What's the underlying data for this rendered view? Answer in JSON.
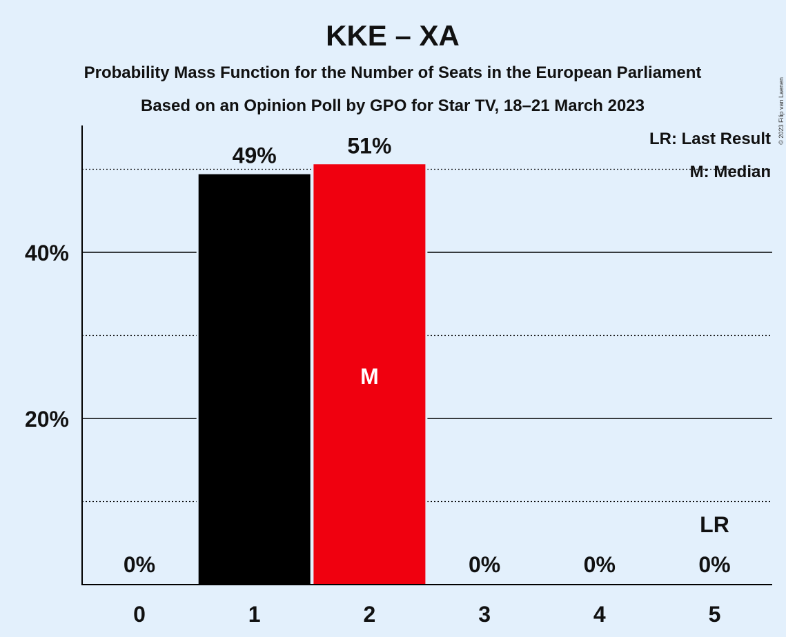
{
  "header": {
    "title": "KKE – XA",
    "subtitle_line1": "Probability Mass Function for the Number of Seats in the European Parliament",
    "subtitle_line2": "Based on an Opinion Poll by GPO for Star TV, 18–21 March 2023",
    "copyright": "© 2023 Filip van Laenen"
  },
  "legend": {
    "last_result": "LR: Last Result",
    "median": "M: Median"
  },
  "chart_data": {
    "type": "bar",
    "title": "KKE – XA",
    "categories": [
      "0",
      "1",
      "2",
      "3",
      "4",
      "5"
    ],
    "values": [
      0,
      49.4,
      50.6,
      0,
      0,
      0
    ],
    "value_labels": [
      "0%",
      "49%",
      "51%",
      "0%",
      "0%",
      "0%"
    ],
    "bar_colors": [
      "#000000",
      "#000000",
      "#f0000f",
      "#000000",
      "#000000",
      "#000000"
    ],
    "ylim": [
      0,
      55
    ],
    "yticks_major": [
      20,
      40
    ],
    "ytick_labels": [
      "20%",
      "40%"
    ],
    "yticks_minor": [
      10,
      30,
      50
    ],
    "median_category": "2",
    "median_label": "M",
    "last_result_category": "5",
    "last_result_label": "LR",
    "legend_position": "top-right",
    "grid": true
  },
  "colors": {
    "background": "#e3f0fc",
    "party_primary": "#000000",
    "party_median": "#f0000f"
  }
}
